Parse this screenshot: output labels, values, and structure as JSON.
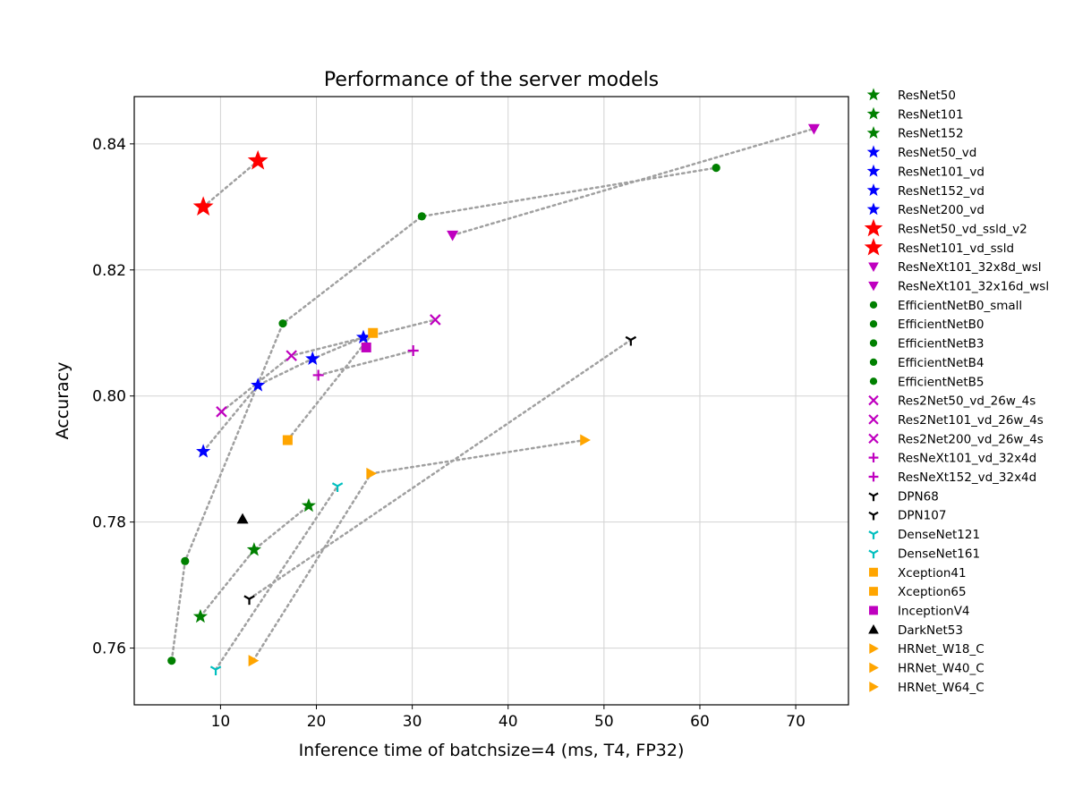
{
  "chart_data": {
    "type": "scatter",
    "title": "Performance of the server models",
    "xlabel": "Inference time of batchsize=4 (ms, T4, FP32)",
    "ylabel": "Accuracy",
    "xlim": [
      1,
      75.5
    ],
    "ylim": [
      0.751,
      0.8475
    ],
    "xticks": [
      10,
      20,
      30,
      40,
      50,
      60,
      70
    ],
    "yticks": [
      0.76,
      0.78,
      0.8,
      0.82,
      0.84
    ],
    "grid": true,
    "legend_position": "outside-right",
    "series": [
      {
        "name": "ResNet50",
        "marker": "star",
        "color": "#008000",
        "x": 7.9,
        "y": 0.765
      },
      {
        "name": "ResNet101",
        "marker": "star",
        "color": "#008000",
        "x": 13.5,
        "y": 0.7756
      },
      {
        "name": "ResNet152",
        "marker": "star",
        "color": "#008000",
        "x": 19.2,
        "y": 0.7826
      },
      {
        "name": "ResNet50_vd",
        "marker": "star",
        "color": "#0000ff",
        "x": 8.2,
        "y": 0.7912
      },
      {
        "name": "ResNet101_vd",
        "marker": "star",
        "color": "#0000ff",
        "x": 13.9,
        "y": 0.8017
      },
      {
        "name": "ResNet152_vd",
        "marker": "star",
        "color": "#0000ff",
        "x": 19.6,
        "y": 0.8059
      },
      {
        "name": "ResNet200_vd",
        "marker": "star",
        "color": "#0000ff",
        "x": 24.9,
        "y": 0.8093
      },
      {
        "name": "ResNet50_vd_ssld_v2",
        "marker": "bigstar",
        "color": "#ff0000",
        "x": 8.2,
        "y": 0.83
      },
      {
        "name": "ResNet101_vd_ssld",
        "marker": "bigstar",
        "color": "#ff0000",
        "x": 13.9,
        "y": 0.8373
      },
      {
        "name": "ResNeXt101_32x8d_wsl",
        "marker": "triangle_down",
        "color": "#bf00bf",
        "x": 34.2,
        "y": 0.8255
      },
      {
        "name": "ResNeXt101_32x16d_wsl",
        "marker": "triangle_down",
        "color": "#bf00bf",
        "x": 71.9,
        "y": 0.8424
      },
      {
        "name": "EfficientNetB0_small",
        "marker": "circle",
        "color": "#008000",
        "x": 4.9,
        "y": 0.758
      },
      {
        "name": "EfficientNetB0",
        "marker": "circle",
        "color": "#008000",
        "x": 6.3,
        "y": 0.7738
      },
      {
        "name": "EfficientNetB3",
        "marker": "circle",
        "color": "#008000",
        "x": 16.5,
        "y": 0.8115
      },
      {
        "name": "EfficientNetB4",
        "marker": "circle",
        "color": "#008000",
        "x": 31.0,
        "y": 0.8285
      },
      {
        "name": "EfficientNetB5",
        "marker": "circle",
        "color": "#008000",
        "x": 61.7,
        "y": 0.8362
      },
      {
        "name": "Res2Net50_vd_26w_4s",
        "marker": "x",
        "color": "#bf00bf",
        "x": 10.1,
        "y": 0.7975
      },
      {
        "name": "Res2Net101_vd_26w_4s",
        "marker": "x",
        "color": "#bf00bf",
        "x": 17.4,
        "y": 0.8064
      },
      {
        "name": "Res2Net200_vd_26w_4s",
        "marker": "x",
        "color": "#bf00bf",
        "x": 32.4,
        "y": 0.8121
      },
      {
        "name": "ResNeXt101_vd_32x4d",
        "marker": "plus",
        "color": "#bf00bf",
        "x": 20.2,
        "y": 0.8033
      },
      {
        "name": "ResNeXt152_vd_32x4d",
        "marker": "plus",
        "color": "#bf00bf",
        "x": 30.1,
        "y": 0.8072
      },
      {
        "name": "DPN68",
        "marker": "tri_down",
        "color": "#000000",
        "x": 13.0,
        "y": 0.7678
      },
      {
        "name": "DPN107",
        "marker": "tri_down",
        "color": "#000000",
        "x": 52.8,
        "y": 0.8089
      },
      {
        "name": "DenseNet121",
        "marker": "tri_down",
        "color": "#00bfbf",
        "x": 9.5,
        "y": 0.7566
      },
      {
        "name": "DenseNet161",
        "marker": "tri_down",
        "color": "#00bfbf",
        "x": 22.2,
        "y": 0.7857
      },
      {
        "name": "Xception41",
        "marker": "square",
        "color": "#ffa500",
        "x": 17.0,
        "y": 0.793
      },
      {
        "name": "Xception65",
        "marker": "square",
        "color": "#ffa500",
        "x": 25.9,
        "y": 0.81
      },
      {
        "name": "InceptionV4",
        "marker": "square",
        "color": "#bf00bf",
        "x": 25.2,
        "y": 0.8077
      },
      {
        "name": "DarkNet53",
        "marker": "triangle_up",
        "color": "#000000",
        "x": 12.3,
        "y": 0.7805
      },
      {
        "name": "HRNet_W18_C",
        "marker": "triangle_right",
        "color": "#ffa500",
        "x": 13.4,
        "y": 0.758
      },
      {
        "name": "HRNet_W40_C",
        "marker": "triangle_right",
        "color": "#ffa500",
        "x": 25.7,
        "y": 0.7877
      },
      {
        "name": "HRNet_W64_C",
        "marker": "triangle_right",
        "color": "#ffa500",
        "x": 48.0,
        "y": 0.793
      }
    ],
    "connecting_lines": [
      {
        "group": "ResNet",
        "color": "#a0a0a0",
        "points": [
          [
            7.9,
            0.765
          ],
          [
            13.5,
            0.7756
          ],
          [
            19.2,
            0.7826
          ]
        ]
      },
      {
        "group": "ResNet_vd",
        "color": "#a0a0a0",
        "points": [
          [
            8.2,
            0.7912
          ],
          [
            13.9,
            0.8017
          ],
          [
            19.6,
            0.8059
          ],
          [
            24.9,
            0.8093
          ]
        ]
      },
      {
        "group": "ResNet_ssld",
        "color": "#a0a0a0",
        "points": [
          [
            8.2,
            0.83
          ],
          [
            13.9,
            0.8373
          ]
        ]
      },
      {
        "group": "ResNeXt_wsl",
        "color": "#a0a0a0",
        "points": [
          [
            34.2,
            0.8255
          ],
          [
            71.9,
            0.8424
          ]
        ]
      },
      {
        "group": "EfficientNet",
        "color": "#a0a0a0",
        "points": [
          [
            4.9,
            0.758
          ],
          [
            6.3,
            0.7738
          ],
          [
            16.5,
            0.8115
          ],
          [
            31.0,
            0.8285
          ],
          [
            61.7,
            0.8362
          ]
        ]
      },
      {
        "group": "Res2Net",
        "color": "#a0a0a0",
        "points": [
          [
            10.1,
            0.7975
          ],
          [
            17.4,
            0.8064
          ],
          [
            32.4,
            0.8121
          ]
        ]
      },
      {
        "group": "ResNeXt_vd",
        "color": "#a0a0a0",
        "points": [
          [
            20.2,
            0.8033
          ],
          [
            30.1,
            0.8072
          ]
        ]
      },
      {
        "group": "DPN",
        "color": "#a0a0a0",
        "points": [
          [
            13.0,
            0.7678
          ],
          [
            52.8,
            0.8089
          ]
        ]
      },
      {
        "group": "DenseNet",
        "color": "#a0a0a0",
        "points": [
          [
            9.5,
            0.7566
          ],
          [
            22.2,
            0.7857
          ]
        ]
      },
      {
        "group": "Xception",
        "color": "#a0a0a0",
        "points": [
          [
            17.0,
            0.793
          ],
          [
            25.9,
            0.81
          ]
        ]
      },
      {
        "group": "HRNet",
        "color": "#a0a0a0",
        "points": [
          [
            13.4,
            0.758
          ],
          [
            25.7,
            0.7877
          ],
          [
            48.0,
            0.793
          ]
        ]
      }
    ]
  }
}
